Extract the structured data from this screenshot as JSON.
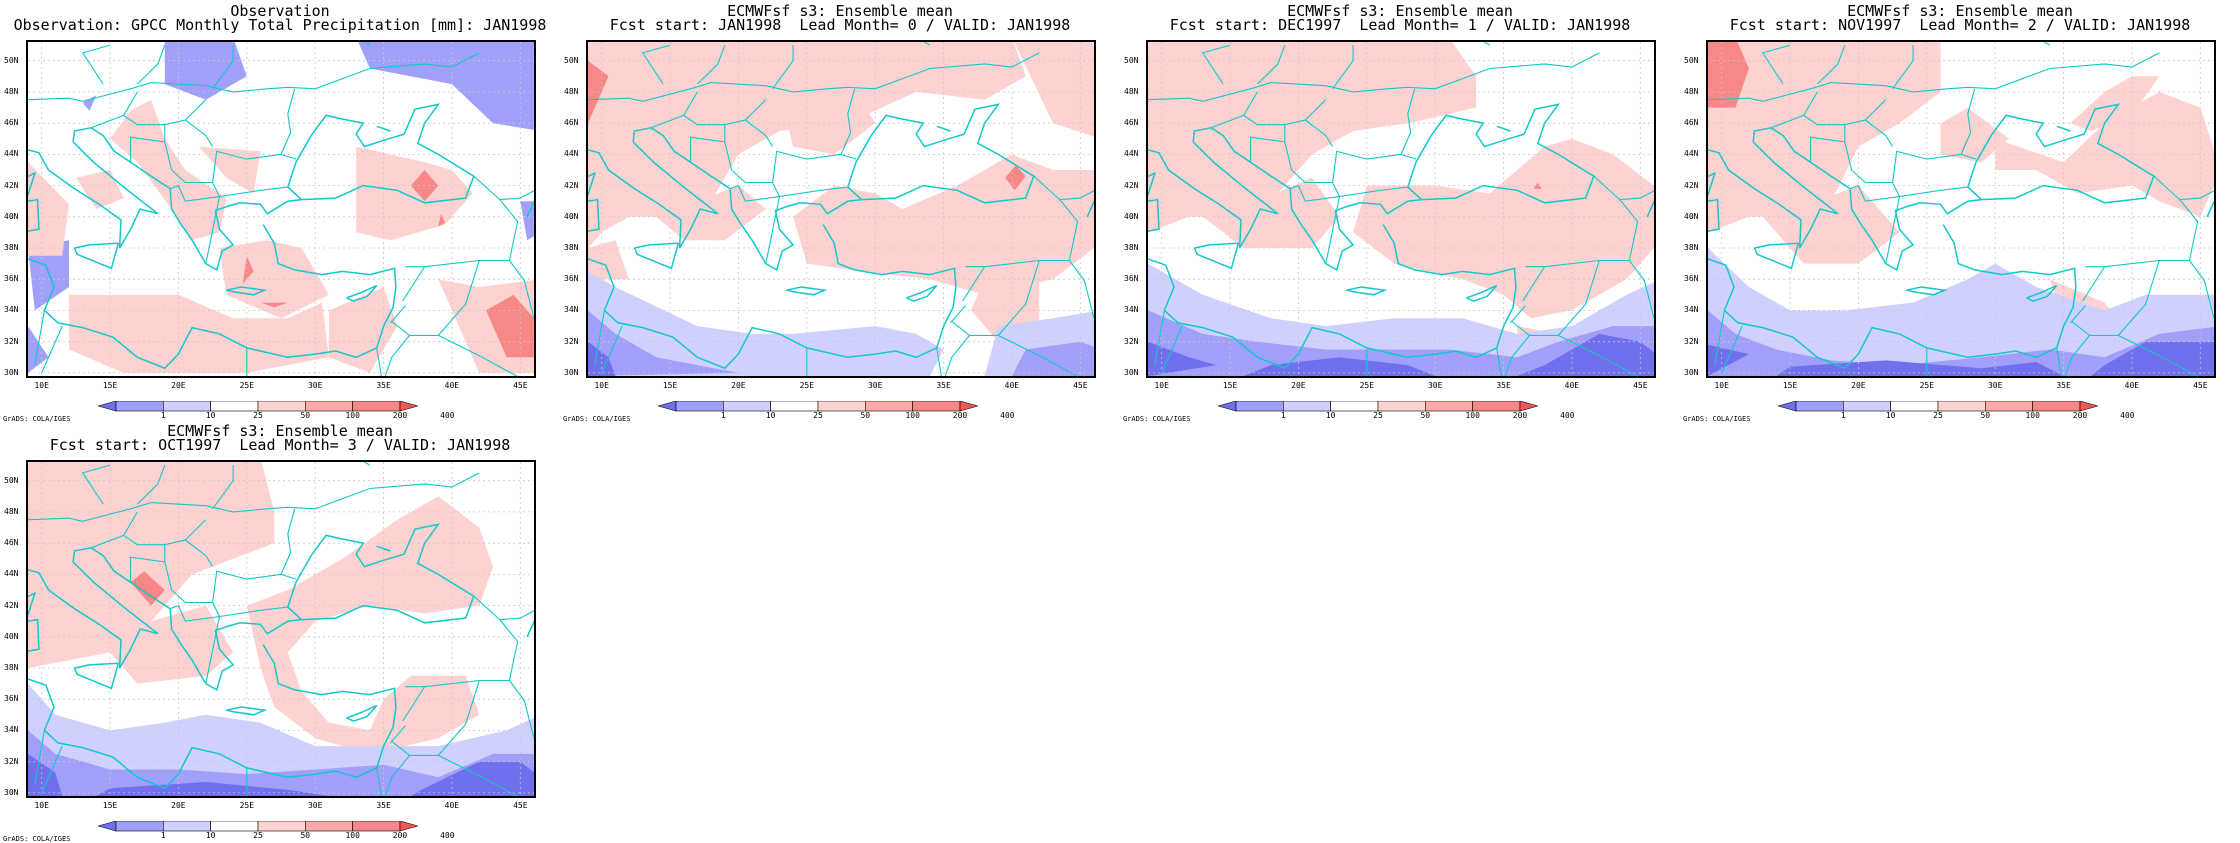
{
  "panels": [
    {
      "title_line1": "Observation",
      "title_line2": "Observation: GPCC Monthly Total Precipitation [mm]: JAN1998"
    },
    {
      "title_line1": "ECMWFsf s3: Ensemble mean",
      "title_line2": "Fcst start: JAN1998  Lead Month= 0 / VALID: JAN1998"
    },
    {
      "title_line1": "ECMWFsf s3: Ensemble mean",
      "title_line2": "Fcst start: DEC1997  Lead Month= 1 / VALID: JAN1998"
    },
    {
      "title_line1": "ECMWFsf s3: Ensemble mean",
      "title_line2": "Fcst start: NOV1997  Lead Month= 2 / VALID: JAN1998"
    },
    {
      "title_line1": "ECMWFsf s3: Ensemble mean",
      "title_line2": "Fcst start: OCT1997  Lead Month= 3 / VALID: JAN1998"
    }
  ],
  "lat_labels": [
    "30N",
    "32N",
    "34N",
    "36N",
    "38N",
    "40N",
    "42N",
    "44N",
    "46N",
    "48N",
    "50N"
  ],
  "lon_labels": [
    "10E",
    "15E",
    "20E",
    "25E",
    "30E",
    "35E",
    "40E",
    "45E"
  ],
  "colorbar_labels": [
    "1",
    "10",
    "25",
    "50",
    "100",
    "200",
    "400"
  ],
  "colorbar_colors": [
    "#7070ee",
    "#a0a0fa",
    "#d0d0ff",
    "#ffffff",
    "#ffd2d2",
    "#fca9a9",
    "#f88888",
    "#f25757"
  ],
  "credit": "GrADS: COLA/IGES",
  "colors": {
    "coast": "#10c8c8",
    "grid": "#c8c8c8"
  }
}
